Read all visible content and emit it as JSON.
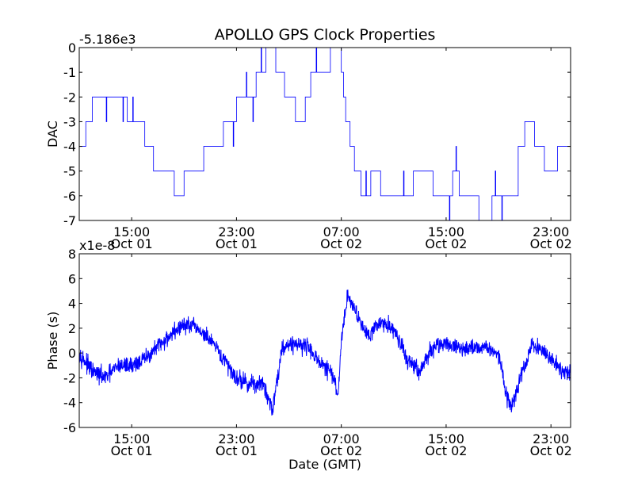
{
  "figure": {
    "title": "APOLLO GPS Clock Properties",
    "xlabel": "Date (GMT)"
  },
  "colors": {
    "line": "#0000ff",
    "axes": "#000000",
    "background": "#ffffff"
  },
  "chart_data": [
    {
      "type": "line",
      "title": "APOLLO GPS Clock Properties",
      "ylabel": "DAC",
      "xlabel": "",
      "offset_text": "-5.186e3",
      "ylim": [
        -7,
        0
      ],
      "yticks": [
        0,
        -1,
        -2,
        -3,
        -4,
        -5,
        -6,
        -7
      ],
      "ytick_labels": [
        "0",
        "-1",
        "-2",
        "-3",
        "-4",
        "-5",
        "-6",
        "-7"
      ],
      "xlim": [
        "2001-10-01 11:00",
        "2001-10-03 00:30"
      ],
      "xticks": [
        "2001-10-01 15:00",
        "2001-10-01 23:00",
        "2001-10-02 07:00",
        "2001-10-02 15:00",
        "2001-10-02 23:00"
      ],
      "xtick_labels": [
        [
          "15:00",
          "Oct 01"
        ],
        [
          "23:00",
          "Oct 01"
        ],
        [
          "07:00",
          "Oct 02"
        ],
        [
          "15:00",
          "Oct 02"
        ],
        [
          "23:00",
          "Oct 02"
        ]
      ],
      "grid": false,
      "series": [
        {
          "step": true,
          "x": [
            "2001-10-01 11:00",
            "2001-10-01 11:30",
            "2001-10-01 12:00",
            "2001-10-01 12:45",
            "2001-10-01 14:00",
            "2001-10-01 14:40",
            "2001-10-01 15:30",
            "2001-10-01 16:00",
            "2001-10-01 16:40",
            "2001-10-01 17:30",
            "2001-10-01 18:15",
            "2001-10-01 19:00",
            "2001-10-01 19:45",
            "2001-10-01 20:30",
            "2001-10-01 21:15",
            "2001-10-01 22:00",
            "2001-10-01 23:00",
            "2001-10-02 00:00",
            "2001-10-02 00:30",
            "2001-10-02 01:15",
            "2001-10-02 02:00",
            "2001-10-02 02:40",
            "2001-10-02 03:30",
            "2001-10-02 04:15",
            "2001-10-02 04:40",
            "2001-10-02 05:30",
            "2001-10-02 06:10",
            "2001-10-02 06:45",
            "2001-10-02 07:00",
            "2001-10-02 07:10",
            "2001-10-02 07:20",
            "2001-10-02 07:40",
            "2001-10-02 08:00",
            "2001-10-02 08:30",
            "2001-10-02 09:15",
            "2001-10-02 10:00",
            "2001-10-02 11:30",
            "2001-10-02 12:30",
            "2001-10-02 14:00",
            "2001-10-02 14:30",
            "2001-10-02 15:30",
            "2001-10-02 16:00",
            "2001-10-02 17:30",
            "2001-10-02 18:30",
            "2001-10-02 20:00",
            "2001-10-02 20:30",
            "2001-10-02 21:00",
            "2001-10-02 21:45",
            "2001-10-02 22:30",
            "2001-10-02 23:00",
            "2001-10-02 23:30",
            "2001-10-03 00:30"
          ],
          "values": [
            -4,
            -3,
            -2,
            -2,
            -2,
            -3,
            -3,
            -4,
            -5,
            -5,
            -6,
            -5,
            -5,
            -4,
            -4,
            -3,
            -2,
            -2,
            -1,
            0,
            -1,
            -2,
            -3,
            -2,
            -1,
            -1,
            0,
            0,
            -1,
            -2,
            -3,
            -4,
            -5,
            -6,
            -5,
            -6,
            -6,
            -5,
            -6,
            -6,
            -5,
            -6,
            -7,
            -6,
            -6,
            -4,
            -3,
            -4,
            -5,
            -5,
            -4,
            -4
          ]
        }
      ]
    },
    {
      "type": "line",
      "ylabel": "Phase (s)",
      "xlabel": "Date (GMT)",
      "offset_text": "x1e-8",
      "ylim": [
        -6,
        8
      ],
      "yticks": [
        8,
        6,
        4,
        2,
        0,
        -2,
        -4,
        -6
      ],
      "ytick_labels": [
        "8",
        "6",
        "4",
        "2",
        "0",
        "-2",
        "-4",
        "-6"
      ],
      "xlim": [
        "2001-10-01 11:00",
        "2001-10-03 00:30"
      ],
      "xticks": [
        "2001-10-01 15:00",
        "2001-10-01 23:00",
        "2001-10-02 07:00",
        "2001-10-02 15:00",
        "2001-10-02 23:00"
      ],
      "xtick_labels": [
        [
          "15:00",
          "Oct 01"
        ],
        [
          "23:00",
          "Oct 01"
        ],
        [
          "07:00",
          "Oct 02"
        ],
        [
          "15:00",
          "Oct 02"
        ],
        [
          "23:00",
          "Oct 02"
        ]
      ],
      "grid": false,
      "series": [
        {
          "noise_amplitude": 0.7,
          "x": [
            "2001-10-01 11:00",
            "2001-10-01 12:00",
            "2001-10-01 13:00",
            "2001-10-01 14:00",
            "2001-10-01 15:00",
            "2001-10-01 16:00",
            "2001-10-01 17:00",
            "2001-10-01 18:00",
            "2001-10-01 19:00",
            "2001-10-01 20:00",
            "2001-10-01 21:00",
            "2001-10-01 22:00",
            "2001-10-01 23:00",
            "2001-10-02 00:00",
            "2001-10-02 01:00",
            "2001-10-02 01:45",
            "2001-10-02 02:30",
            "2001-10-02 03:30",
            "2001-10-02 04:30",
            "2001-10-02 05:30",
            "2001-10-02 06:15",
            "2001-10-02 06:45",
            "2001-10-02 07:00",
            "2001-10-02 07:30",
            "2001-10-02 08:00",
            "2001-10-02 09:00",
            "2001-10-02 10:00",
            "2001-10-02 11:00",
            "2001-10-02 12:00",
            "2001-10-02 13:00",
            "2001-10-02 14:00",
            "2001-10-02 15:00",
            "2001-10-02 16:00",
            "2001-10-02 17:00",
            "2001-10-02 18:00",
            "2001-10-02 19:00",
            "2001-10-02 19:30",
            "2001-10-02 20:00",
            "2001-10-02 20:40",
            "2001-10-02 21:30",
            "2001-10-02 22:00",
            "2001-10-02 23:00",
            "2001-10-03 00:00",
            "2001-10-03 00:30"
          ],
          "values": [
            0,
            -1.5,
            -2,
            -1,
            -1,
            -0.5,
            0.5,
            1.5,
            2.3,
            2,
            1,
            -0.5,
            -2,
            -2.5,
            -2.5,
            -4.5,
            0.5,
            0.8,
            0.5,
            -1,
            -1.5,
            -3.5,
            1,
            4.8,
            3.5,
            1.5,
            2.5,
            2,
            -0.5,
            -1.5,
            0.5,
            0.8,
            0.3,
            0.5,
            0.5,
            0,
            -3,
            -4.5,
            -2,
            0.5,
            0.5,
            -0.5,
            -1.5,
            -1.5
          ]
        }
      ]
    }
  ]
}
